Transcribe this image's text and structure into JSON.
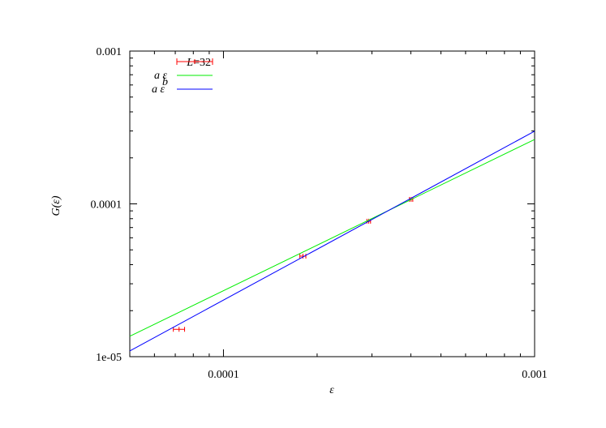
{
  "chart_data": {
    "type": "line",
    "title": "",
    "xlabel": "ε",
    "ylabel": "G(ε)",
    "xscale": "log",
    "yscale": "log",
    "xlim": [
      5e-05,
      0.001
    ],
    "ylim": [
      1e-05,
      0.001
    ],
    "xticks": [
      {
        "value": 0.0001,
        "label": "0.0001"
      },
      {
        "value": 0.001,
        "label": "0.001"
      }
    ],
    "yticks": [
      {
        "value": 1e-05,
        "label": "1e-05"
      },
      {
        "value": 0.0001,
        "label": "0.0001"
      },
      {
        "value": 0.001,
        "label": "0.001"
      }
    ],
    "grid": false,
    "legend_position": "top-left",
    "series": [
      {
        "name": "L=32",
        "kind": "points-with-xerrorbars",
        "color": "#ff0000",
        "points": [
          {
            "x": 7.2e-05,
            "y": 1.51e-05,
            "xerr": 3e-06
          },
          {
            "x": 0.00018,
            "y": 4.55e-05,
            "xerr": 4e-06
          },
          {
            "x": 0.000293,
            "y": 7.7e-05,
            "xerr": 4e-06
          },
          {
            "x": 0.000401,
            "y": 0.000107,
            "xerr": 5e-06
          }
        ]
      },
      {
        "name": "a ε",
        "kind": "line",
        "color": "#00ee00",
        "points": [
          {
            "x": 5e-05,
            "y": 1.36e-05
          },
          {
            "x": 0.001,
            "y": 0.000264
          }
        ]
      },
      {
        "name": "a ε^b",
        "kind": "line",
        "color": "#0000ff",
        "points": [
          {
            "x": 5e-05,
            "y": 1.09e-05
          },
          {
            "x": 0.001,
            "y": 0.000299
          }
        ]
      }
    ]
  },
  "legend": {
    "items": [
      {
        "label_main": "L=32",
        "color": "#ff0000"
      },
      {
        "label_main": "a ε",
        "color": "#00ee00"
      },
      {
        "label_main": "a ε",
        "sup": "b",
        "color": "#0000ff"
      }
    ]
  },
  "axes": {
    "xlabel": "ε",
    "ylabel": "G(ε)"
  }
}
